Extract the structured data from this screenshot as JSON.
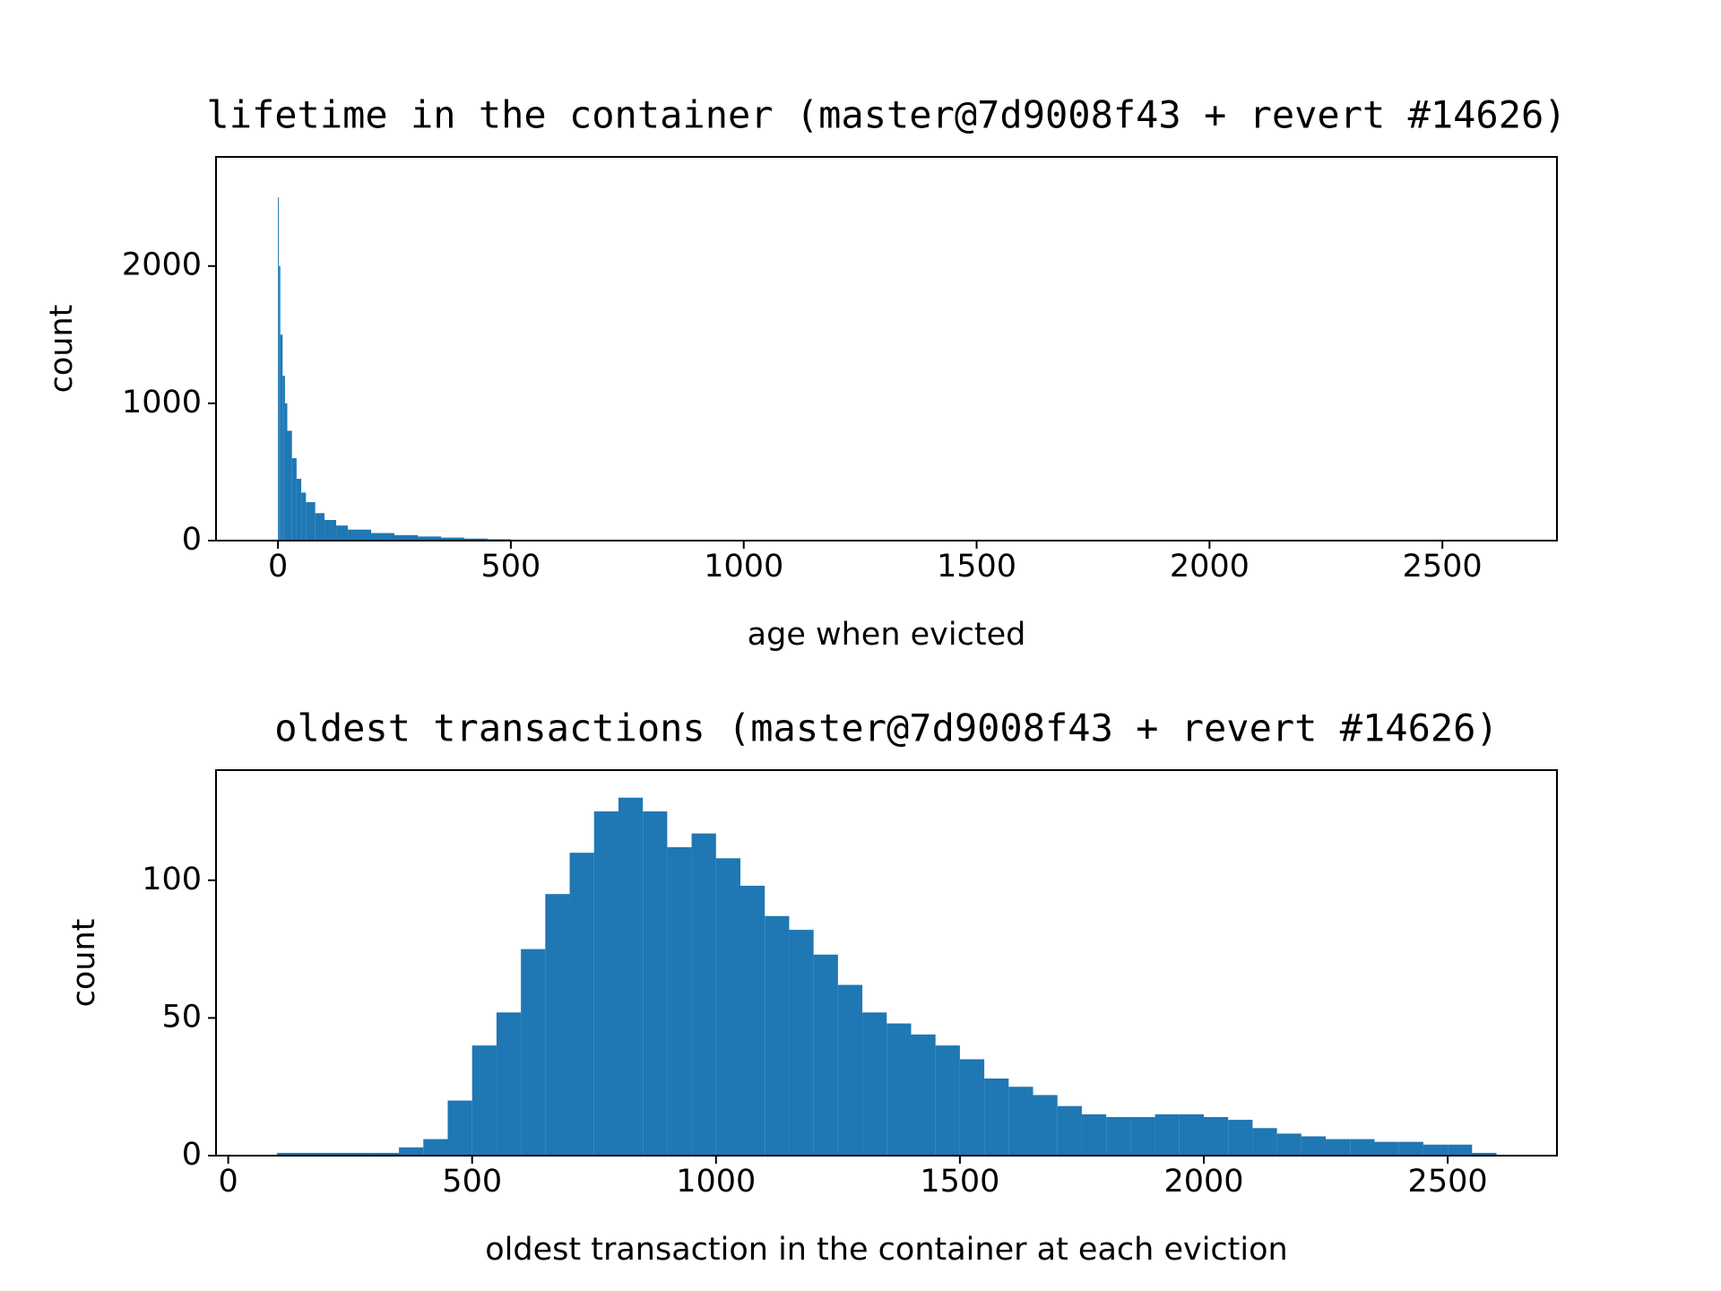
{
  "chart_data": [
    {
      "type": "histogram",
      "title": "lifetime in the container (master@7d9008f43 + revert #14626)",
      "xlabel": "age when evicted",
      "ylabel": "count",
      "color": "#1f77b4",
      "bins": [
        0,
        2,
        5,
        10,
        15,
        20,
        30,
        40,
        50,
        60,
        80,
        100,
        125,
        150,
        200,
        250,
        300,
        350,
        400,
        450,
        500,
        550,
        600,
        650
      ],
      "counts": [
        2500,
        2000,
        1500,
        1200,
        1000,
        800,
        600,
        450,
        350,
        280,
        200,
        150,
        110,
        80,
        55,
        40,
        30,
        22,
        15,
        10,
        6,
        3,
        1
      ],
      "xlim": [
        -133,
        2746
      ],
      "ylim": [
        0,
        2795
      ],
      "xticks": [
        0,
        500,
        1000,
        1500,
        2000,
        2500
      ],
      "yticks": [
        0,
        1000,
        2000
      ]
    },
    {
      "type": "histogram",
      "title": "oldest transactions (master@7d9008f43 + revert #14626)",
      "xlabel": "oldest transaction in the container at each eviction",
      "ylabel": "count",
      "color": "#1f77b4",
      "bins": [
        100,
        300,
        350,
        400,
        450,
        500,
        550,
        600,
        650,
        700,
        750,
        800,
        850,
        900,
        950,
        1000,
        1050,
        1100,
        1150,
        1200,
        1250,
        1300,
        1350,
        1400,
        1450,
        1500,
        1550,
        1600,
        1650,
        1700,
        1750,
        1800,
        1850,
        1900,
        1950,
        2000,
        2050,
        2100,
        2150,
        2200,
        2250,
        2300,
        2350,
        2400,
        2450,
        2500,
        2550,
        2600
      ],
      "counts": [
        1,
        1,
        3,
        6,
        20,
        40,
        52,
        75,
        95,
        110,
        125,
        130,
        125,
        112,
        117,
        108,
        98,
        87,
        82,
        73,
        62,
        52,
        48,
        44,
        40,
        35,
        28,
        25,
        22,
        18,
        15,
        14,
        14,
        15,
        15,
        14,
        13,
        10,
        8,
        7,
        6,
        6,
        5,
        5,
        4,
        4,
        1
      ],
      "xlim": [
        -25,
        2724
      ],
      "ylim": [
        0,
        140
      ],
      "xticks": [
        0,
        500,
        1000,
        1500,
        2000,
        2500
      ],
      "yticks": [
        0,
        50,
        100
      ]
    }
  ]
}
